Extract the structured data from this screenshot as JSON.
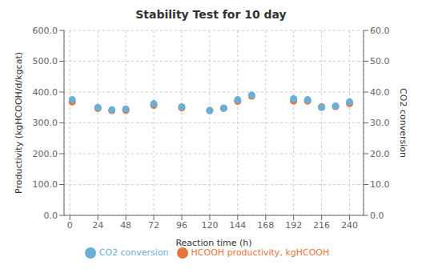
{
  "chart_data": {
    "type": "scatter",
    "title": "Stability  Test for 10 day",
    "xlabel": "Reaction time (h)",
    "ylabel": "Productivity (kgHCOOH/d/kgcat)",
    "y2label": "CO2 conversion",
    "x": [
      2,
      24,
      36,
      48,
      72,
      96,
      120,
      132,
      144,
      156,
      192,
      204,
      216,
      228,
      240
    ],
    "series": [
      {
        "name": "HCOOH productivity, kgHCOOH",
        "color": "#e8743b",
        "values": [
          368,
          347,
          340,
          341,
          357,
          349,
          340,
          347,
          370,
          387,
          371,
          371,
          352,
          353,
          363
        ]
      },
      {
        "name": "CO2 conversion",
        "color": "#6baed6",
        "axis": "y2",
        "values": [
          37.5,
          35.0,
          34.2,
          34.5,
          36.2,
          35.2,
          34.0,
          34.8,
          37.5,
          39.0,
          37.8,
          37.5,
          35.0,
          35.5,
          36.8
        ]
      }
    ],
    "xlim": [
      -5,
      252
    ],
    "xticks": [
      0,
      24,
      48,
      72,
      96,
      120,
      144,
      168,
      192,
      216,
      240
    ],
    "ylim": [
      0.0,
      600.0
    ],
    "yticks": [
      {
        "value": 0,
        "label": "0.0"
      },
      {
        "value": 100,
        "label": "100.0"
      },
      {
        "value": 200,
        "label": "200.0"
      },
      {
        "value": 300,
        "label": "300.0"
      },
      {
        "value": 400,
        "label": "400.0"
      },
      {
        "value": 500,
        "label": "500.0"
      },
      {
        "value": 600,
        "label": "600.0"
      }
    ],
    "y2lim": [
      0.0,
      60.0
    ],
    "y2ticks": [
      {
        "value": 0,
        "label": "0.0"
      },
      {
        "value": 10,
        "label": "10.0"
      },
      {
        "value": 20,
        "label": "20.0"
      },
      {
        "value": 30,
        "label": "30.0"
      },
      {
        "value": 40,
        "label": "40.0"
      },
      {
        "value": 50,
        "label": "50.0"
      },
      {
        "value": 60,
        "label": "60.0"
      }
    ],
    "grid": true,
    "legend": "bottom"
  }
}
